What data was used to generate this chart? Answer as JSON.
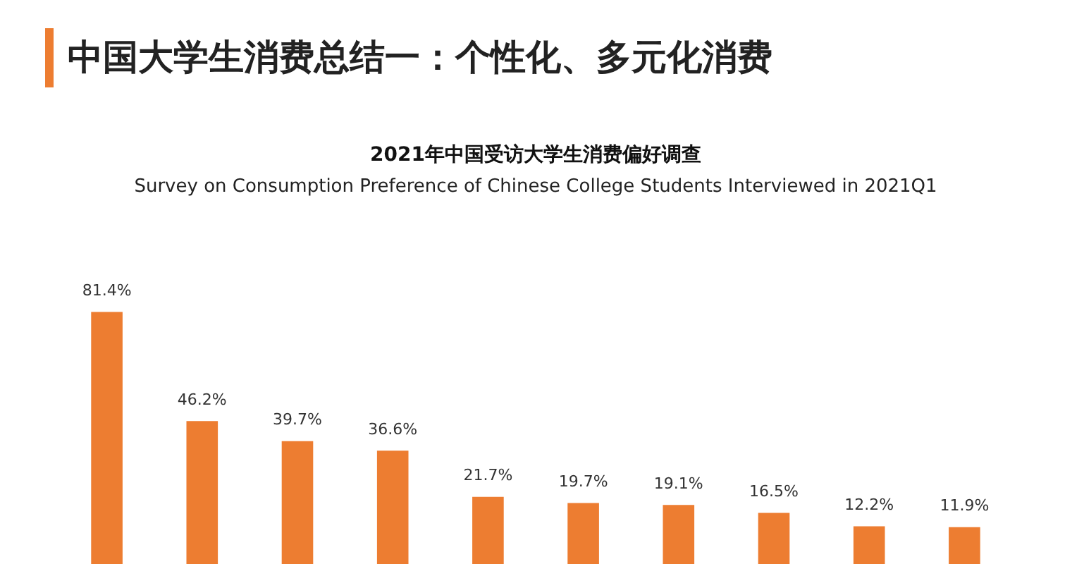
{
  "chart_data": {
    "type": "bar",
    "title": "2021年中国受访大学生消费偏好调查",
    "subtitle": "Survey on Consumption Preference of Chinese College Students Interviewed in 2021Q1",
    "annotations": [
      "中国大学生消费总结一：个性化、多元化消费"
    ],
    "categories": [
      null,
      null,
      null,
      null,
      null,
      null,
      null,
      null,
      null,
      null
    ],
    "values": [
      81.4,
      46.2,
      39.7,
      36.6,
      21.7,
      19.7,
      19.1,
      16.5,
      12.2,
      11.9
    ],
    "value_labels": [
      "81.4%",
      "46.2%",
      "39.7%",
      "36.6%",
      "21.7%",
      "19.7%",
      "19.1%",
      "16.5%",
      "12.2%",
      "11.9%"
    ],
    "color": "#ed7d31",
    "legend": false
  }
}
